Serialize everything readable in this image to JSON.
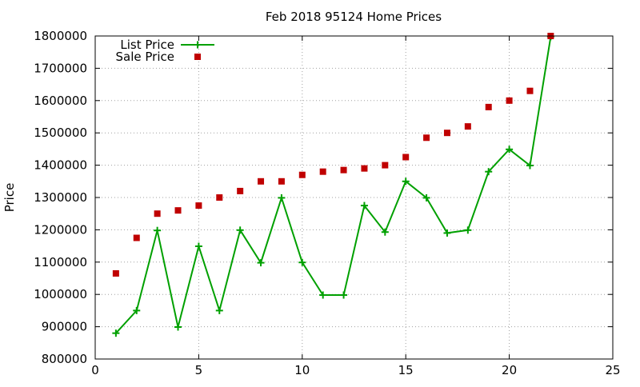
{
  "chart_data": {
    "type": "scatter",
    "title": "Feb 2018 95124 Home Prices",
    "xlabel": "",
    "ylabel": "Price",
    "xlim": [
      0,
      25
    ],
    "ylim": [
      800000,
      1800000
    ],
    "xticks": [
      0,
      5,
      10,
      15,
      20,
      25
    ],
    "yticks": [
      800000,
      900000,
      1000000,
      1100000,
      1200000,
      1300000,
      1400000,
      1500000,
      1600000,
      1700000,
      1800000
    ],
    "grid": true,
    "legend_position": "top-left",
    "series": [
      {
        "name": "List Price",
        "style": "linespoints",
        "color": "#00a000",
        "x": [
          1,
          2,
          3,
          4,
          5,
          6,
          7,
          8,
          9,
          10,
          11,
          12,
          13,
          14,
          15,
          16,
          17,
          18,
          19,
          20,
          21,
          22
        ],
        "y": [
          880000,
          950000,
          1198000,
          899000,
          1149000,
          950000,
          1199000,
          1098000,
          1299000,
          1099000,
          998000,
          998000,
          1275000,
          1193000,
          1350000,
          1299000,
          1190000,
          1199000,
          1380000,
          1449000,
          1399000,
          1798000
        ]
      },
      {
        "name": "Sale Price",
        "style": "points",
        "color": "#c00000",
        "x": [
          1,
          2,
          3,
          4,
          5,
          6,
          7,
          8,
          9,
          10,
          11,
          12,
          13,
          14,
          15,
          16,
          17,
          18,
          19,
          20,
          21,
          22
        ],
        "y": [
          1065000,
          1175000,
          1250000,
          1260000,
          1275000,
          1300000,
          1320000,
          1350000,
          1350000,
          1370000,
          1380000,
          1385000,
          1390000,
          1400000,
          1425000,
          1485000,
          1500000,
          1520000,
          1580000,
          1600000,
          1630000,
          1800000
        ]
      }
    ]
  }
}
